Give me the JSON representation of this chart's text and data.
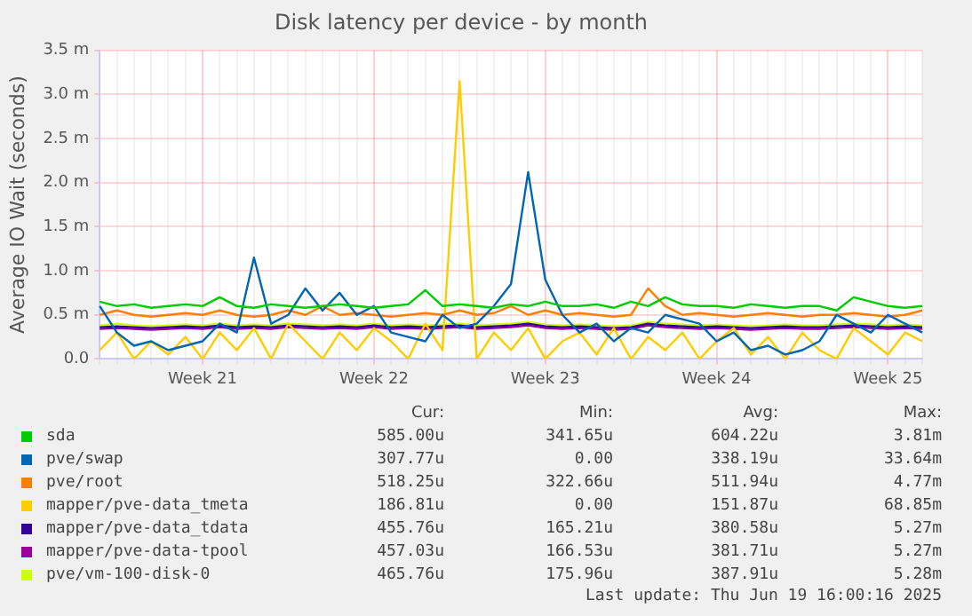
{
  "chart_data": {
    "type": "line",
    "title": "Disk latency per device - by month",
    "ylabel": "Average IO Wait (seconds)",
    "categories": [
      null,
      null,
      null,
      null,
      null,
      null,
      "Week 21",
      null,
      null,
      null,
      null,
      null,
      null,
      null,
      null,
      null,
      "Week 22",
      null,
      null,
      null,
      null,
      null,
      null,
      null,
      null,
      null,
      "Week 23",
      null,
      null,
      null,
      null,
      null,
      null,
      null,
      null,
      null,
      "Week 24",
      null,
      null,
      null,
      null,
      null,
      null,
      null,
      null,
      null,
      "Week 25",
      null,
      null
    ],
    "ylim": [
      0,
      3.5
    ],
    "yticks": [
      {
        "value": 0,
        "label": "0.0"
      },
      {
        "value": 0.5,
        "label": "0.5 m"
      },
      {
        "value": 1,
        "label": "1.0 m"
      },
      {
        "value": 1.5,
        "label": "1.5 m"
      },
      {
        "value": 2,
        "label": "2.0 m"
      },
      {
        "value": 2.5,
        "label": "2.5 m"
      },
      {
        "value": 3,
        "label": "3.0 m"
      },
      {
        "value": 3.5,
        "label": "3.5 m"
      }
    ],
    "grid": true,
    "legend": "bottom",
    "marker": "none",
    "line_style": "solid",
    "series": [
      {
        "name": "sda",
        "color": "#00cc00",
        "values": [
          0.65,
          0.6,
          0.62,
          0.58,
          0.6,
          0.62,
          0.6,
          0.7,
          0.6,
          0.58,
          0.62,
          0.6,
          0.58,
          0.6,
          0.62,
          0.6,
          0.58,
          0.6,
          0.62,
          0.78,
          0.6,
          0.62,
          0.6,
          0.58,
          0.62,
          0.6,
          0.65,
          0.6,
          0.6,
          0.62,
          0.58,
          0.65,
          0.6,
          0.7,
          0.62,
          0.6,
          0.6,
          0.58,
          0.62,
          0.6,
          0.58,
          0.6,
          0.6,
          0.55,
          0.7,
          0.65,
          0.6,
          0.58,
          0.6
        ]
      },
      {
        "name": "pve/swap",
        "color": "#0066b3",
        "values": [
          0.6,
          0.3,
          0.15,
          0.2,
          0.1,
          0.15,
          0.2,
          0.4,
          0.3,
          1.15,
          0.4,
          0.5,
          0.8,
          0.55,
          0.75,
          0.5,
          0.6,
          0.3,
          0.25,
          0.2,
          0.5,
          0.35,
          0.4,
          0.6,
          0.85,
          2.12,
          0.9,
          0.5,
          0.3,
          0.4,
          0.2,
          0.35,
          0.3,
          0.5,
          0.45,
          0.4,
          0.2,
          0.3,
          0.1,
          0.15,
          0.05,
          0.1,
          0.2,
          0.5,
          0.4,
          0.3,
          0.5,
          0.4,
          0.3
        ]
      },
      {
        "name": "pve/root",
        "color": "#ff8000",
        "values": [
          0.5,
          0.55,
          0.5,
          0.48,
          0.5,
          0.52,
          0.5,
          0.55,
          0.5,
          0.48,
          0.5,
          0.55,
          0.5,
          0.6,
          0.5,
          0.52,
          0.5,
          0.48,
          0.5,
          0.52,
          0.5,
          0.55,
          0.5,
          0.52,
          0.6,
          0.5,
          0.55,
          0.5,
          0.52,
          0.5,
          0.48,
          0.5,
          0.8,
          0.6,
          0.5,
          0.52,
          0.5,
          0.48,
          0.5,
          0.52,
          0.5,
          0.48,
          0.5,
          0.5,
          0.52,
          0.5,
          0.48,
          0.5,
          0.55
        ]
      },
      {
        "name": "mapper/pve-data_tmeta",
        "color": "#ffcc00",
        "values": [
          0.1,
          0.3,
          0,
          0.2,
          0.05,
          0.25,
          0,
          0.3,
          0.1,
          0.35,
          0,
          0.4,
          0.2,
          0,
          0.3,
          0.1,
          0.35,
          0.2,
          0,
          0.4,
          0.1,
          3.15,
          0,
          0.3,
          0.1,
          0.35,
          0,
          0.2,
          0.3,
          0.05,
          0.35,
          0,
          0.25,
          0.1,
          0.3,
          0,
          0.2,
          0.35,
          0.05,
          0.25,
          0,
          0.3,
          0.1,
          0,
          0.35,
          0.2,
          0.05,
          0.3,
          0.2
        ]
      },
      {
        "name": "mapper/pve-data_tdata",
        "color": "#330099",
        "values": [
          0.36,
          0.37,
          0.36,
          0.35,
          0.36,
          0.37,
          0.36,
          0.38,
          0.36,
          0.37,
          0.36,
          0.38,
          0.37,
          0.36,
          0.37,
          0.36,
          0.38,
          0.36,
          0.37,
          0.36,
          0.37,
          0.38,
          0.36,
          0.37,
          0.38,
          0.4,
          0.37,
          0.36,
          0.37,
          0.36,
          0.35,
          0.36,
          0.4,
          0.38,
          0.37,
          0.36,
          0.37,
          0.36,
          0.35,
          0.36,
          0.37,
          0.36,
          0.36,
          0.37,
          0.38,
          0.37,
          0.36,
          0.37,
          0.36
        ]
      },
      {
        "name": "mapper/pve-data-tpool",
        "color": "#990099",
        "values": [
          0.34,
          0.35,
          0.34,
          0.33,
          0.34,
          0.35,
          0.34,
          0.36,
          0.34,
          0.35,
          0.34,
          0.36,
          0.35,
          0.34,
          0.35,
          0.34,
          0.36,
          0.34,
          0.35,
          0.34,
          0.35,
          0.36,
          0.34,
          0.35,
          0.36,
          0.38,
          0.35,
          0.34,
          0.35,
          0.34,
          0.33,
          0.34,
          0.38,
          0.36,
          0.35,
          0.34,
          0.35,
          0.34,
          0.33,
          0.34,
          0.35,
          0.34,
          0.34,
          0.35,
          0.36,
          0.35,
          0.34,
          0.35,
          0.34
        ]
      },
      {
        "name": "pve/vm-100-disk-0",
        "color": "#ccff00",
        "values": [
          0.38,
          0.4,
          0.38,
          0.37,
          0.38,
          0.39,
          0.38,
          0.4,
          0.38,
          0.39,
          0.38,
          0.4,
          0.39,
          0.38,
          0.39,
          0.38,
          0.4,
          0.38,
          0.39,
          0.38,
          0.39,
          0.4,
          0.38,
          0.39,
          0.4,
          0.42,
          0.39,
          0.38,
          0.39,
          0.38,
          0.37,
          0.38,
          0.42,
          0.4,
          0.39,
          0.38,
          0.39,
          0.38,
          0.37,
          0.38,
          0.39,
          0.38,
          0.38,
          0.39,
          0.4,
          0.39,
          0.38,
          0.39,
          0.38
        ]
      }
    ],
    "annotations": [
      "Cur:",
      "Min:",
      "Avg:",
      "Max:",
      "585.00u",
      "341.65u",
      "604.22u",
      "3.81m",
      "307.77u",
      "0.00",
      "338.19u",
      "33.64m",
      "518.25u",
      "322.66u",
      "511.94u",
      "4.77m",
      "186.81u",
      "0.00",
      "151.87u",
      "68.85m",
      "455.76u",
      "165.21u",
      "380.58u",
      "5.27m",
      "457.03u",
      "166.53u",
      "381.71u",
      "5.27m",
      "465.76u",
      "175.96u",
      "387.91u",
      "5.28m",
      "Last update: Thu Jun 19 16:00:16 2025"
    ]
  }
}
